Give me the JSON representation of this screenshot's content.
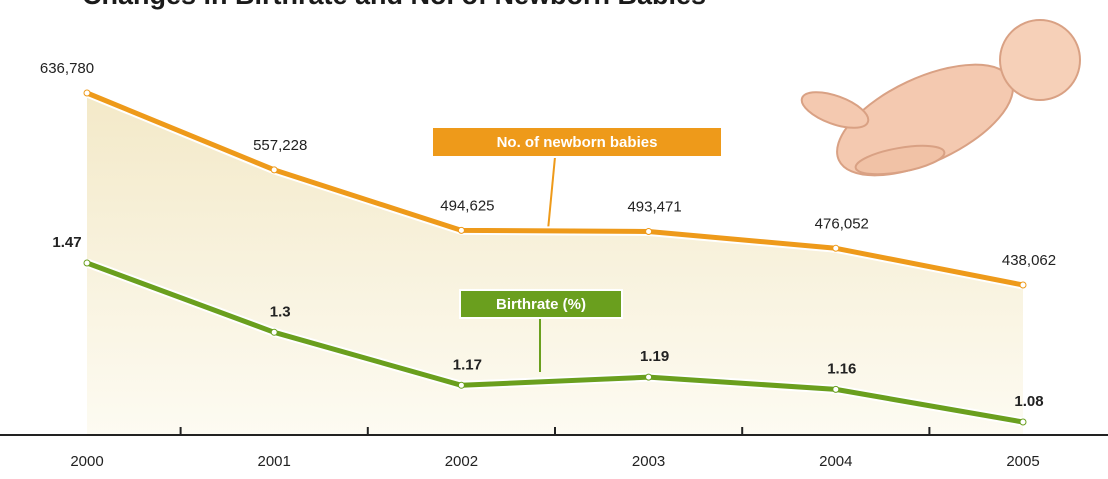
{
  "chart_data": {
    "type": "line",
    "title": "Changes in Birthrate and No. of Newborn Babies",
    "categories": [
      "2000",
      "2001",
      "2002",
      "2003",
      "2004",
      "2005"
    ],
    "series": [
      {
        "name": "No. of newborn babies",
        "color": "#ee9a1a",
        "values": [
          636780,
          557228,
          494625,
          493471,
          476052,
          438062
        ],
        "value_labels": [
          "636,780",
          "557,228",
          "494,625",
          "493,471",
          "476,052",
          "438,062"
        ]
      },
      {
        "name": "Birthrate (%)",
        "color": "#6a9f1e",
        "axis": "y2",
        "values": [
          1.47,
          1.3,
          1.17,
          1.19,
          1.16,
          1.08
        ]
      }
    ]
  }
}
